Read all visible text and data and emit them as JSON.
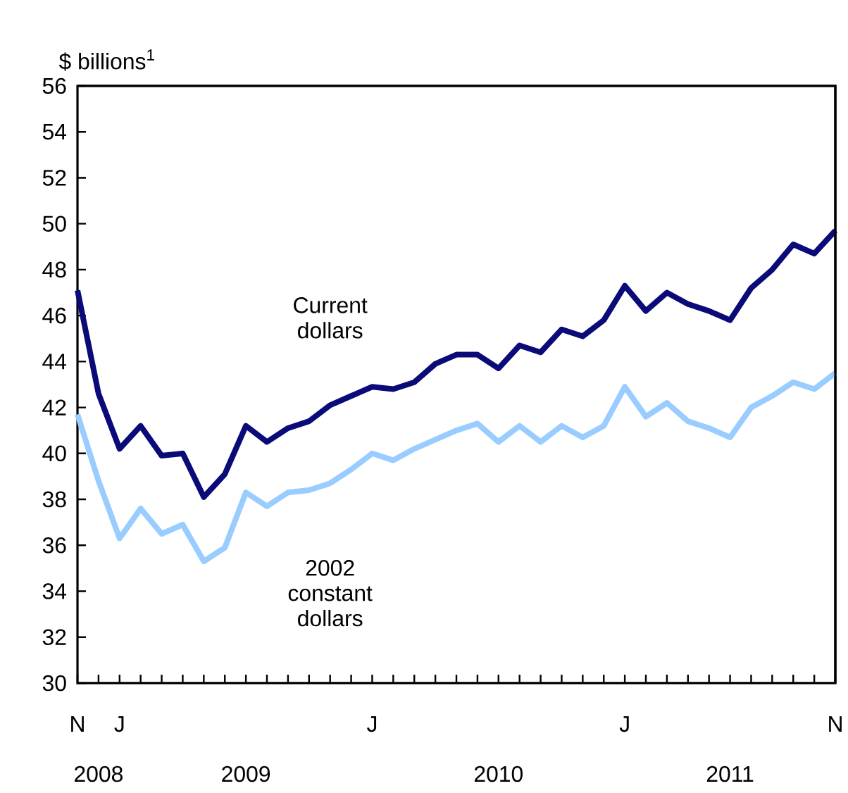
{
  "chart_data": {
    "type": "line",
    "ylabel": "$ billions$^{1}$",
    "categories": [
      "N",
      null,
      "J",
      null,
      null,
      null,
      null,
      null,
      null,
      null,
      null,
      null,
      null,
      null,
      "J",
      null,
      null,
      null,
      null,
      null,
      null,
      null,
      null,
      null,
      null,
      null,
      "J",
      null,
      null,
      null,
      null,
      null,
      null,
      null,
      null,
      null,
      "N"
    ],
    "series": [
      {
        "name": "Current dollars",
        "color": "#0a0a78",
        "values": [
          47.1,
          42.6,
          40.2,
          41.2,
          39.9,
          40.0,
          38.1,
          39.1,
          41.2,
          40.5,
          41.1,
          41.4,
          42.1,
          42.5,
          42.9,
          42.8,
          43.1,
          43.9,
          44.3,
          44.3,
          43.7,
          44.7,
          44.4,
          45.4,
          45.1,
          45.8,
          47.3,
          46.2,
          47.0,
          46.5,
          46.2,
          45.8,
          47.2,
          48.0,
          49.1,
          48.7,
          49.7
        ]
      },
      {
        "name": "2002 constant dollars",
        "color": "#99ccff",
        "values": [
          41.7,
          38.8,
          36.3,
          37.6,
          36.5,
          36.9,
          35.3,
          35.9,
          38.3,
          37.7,
          38.3,
          38.4,
          38.7,
          39.3,
          40.0,
          39.7,
          40.2,
          40.6,
          41.0,
          41.3,
          40.5,
          41.2,
          40.5,
          41.2,
          40.7,
          41.2,
          42.9,
          41.6,
          42.2,
          41.4,
          41.1,
          40.7,
          42.0,
          42.5,
          43.1,
          42.8,
          43.5
        ]
      }
    ],
    "annotations": [
      "2008",
      "2009",
      "2010",
      "2011"
    ],
    "ylim": [
      30,
      56
    ],
    "yticks": [
      30,
      32,
      34,
      36,
      38,
      40,
      42,
      44,
      46,
      48,
      50,
      52,
      54,
      56
    ],
    "legend": false
  }
}
